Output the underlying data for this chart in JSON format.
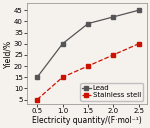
{
  "x": [
    0.5,
    1.0,
    1.5,
    2.0,
    2.5
  ],
  "lead_y": [
    15,
    30,
    39,
    42,
    45
  ],
  "steel_y": [
    5,
    15,
    20,
    25,
    30
  ],
  "lead_label": "Lead",
  "steel_label": "Stainless stell",
  "lead_color": "#555555",
  "steel_color": "#cc1100",
  "xlabel": "Electricity quantity/(F·mol⁻¹)",
  "ylabel": "Yield/%",
  "xlim": [
    0.3,
    2.65
  ],
  "ylim": [
    3,
    48
  ],
  "yticks": [
    5,
    10,
    15,
    20,
    25,
    30,
    35,
    40,
    45
  ],
  "xticks": [
    0.5,
    1.0,
    1.5,
    2.0,
    2.5
  ],
  "axis_fontsize": 5.5,
  "tick_fontsize": 5.0,
  "legend_fontsize": 5.0,
  "linewidth": 0.9,
  "markersize": 2.8,
  "lead_linestyle": "-",
  "steel_linestyle": "--"
}
